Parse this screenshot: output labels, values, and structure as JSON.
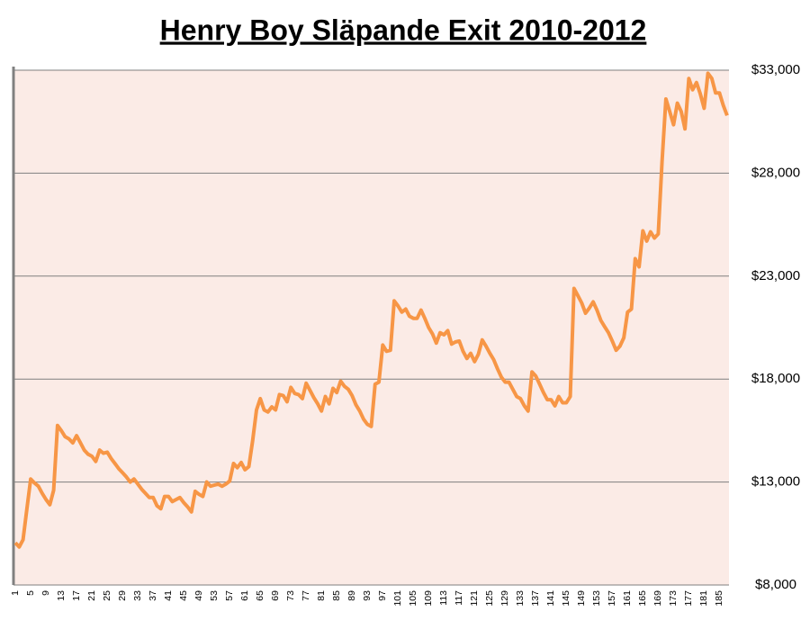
{
  "chart_data": {
    "type": "line",
    "title": "Henry Boy Släpande Exit 2010-2012",
    "categories": [
      "1",
      null,
      null,
      null,
      "5",
      null,
      null,
      null,
      "9",
      null,
      null,
      null,
      "13",
      null,
      null,
      null,
      "17",
      null,
      null,
      null,
      "21",
      null,
      null,
      null,
      "25",
      null,
      null,
      null,
      "29",
      null,
      null,
      null,
      "33",
      null,
      null,
      null,
      "37",
      null,
      null,
      null,
      "41",
      null,
      null,
      null,
      "45",
      null,
      null,
      null,
      "49",
      null,
      null,
      null,
      "53",
      null,
      null,
      null,
      "57",
      null,
      null,
      null,
      "61",
      null,
      null,
      null,
      "65",
      null,
      null,
      null,
      "69",
      null,
      null,
      null,
      "73",
      null,
      null,
      null,
      "77",
      null,
      null,
      null,
      "81",
      null,
      null,
      null,
      "85",
      null,
      null,
      null,
      "89",
      null,
      null,
      null,
      "93",
      null,
      null,
      null,
      "97",
      null,
      null,
      null,
      "101",
      null,
      null,
      null,
      "105",
      null,
      null,
      null,
      "109",
      null,
      null,
      null,
      "113",
      null,
      null,
      null,
      "117",
      null,
      null,
      null,
      "121",
      null,
      null,
      null,
      "125",
      null,
      null,
      null,
      "129",
      null,
      null,
      null,
      "133",
      null,
      null,
      null,
      "137",
      null,
      null,
      null,
      "141",
      null,
      null,
      null,
      "145",
      null,
      null,
      null,
      "149",
      null,
      null,
      null,
      "153",
      null,
      null,
      null,
      "157",
      null,
      null,
      null,
      "161",
      null,
      null,
      null,
      "165",
      null,
      null,
      null,
      "169",
      null,
      null,
      null,
      "173",
      null,
      null,
      null,
      "177",
      null,
      null,
      null,
      "181",
      null,
      null,
      null,
      "185",
      null,
      null
    ],
    "values": [
      10050,
      9850,
      10200,
      11700,
      13150,
      12950,
      12800,
      12450,
      12150,
      11900,
      12600,
      15750,
      15500,
      15200,
      15100,
      14900,
      15250,
      14900,
      14550,
      14350,
      14250,
      14000,
      14550,
      14400,
      14450,
      14150,
      13900,
      13650,
      13450,
      13250,
      13000,
      13150,
      12900,
      12650,
      12450,
      12250,
      12250,
      11850,
      11700,
      12300,
      12300,
      12050,
      12150,
      12250,
      12000,
      11800,
      11550,
      12550,
      12400,
      12300,
      13000,
      12800,
      12850,
      12900,
      12800,
      12900,
      13050,
      13900,
      13700,
      13950,
      13600,
      13750,
      15000,
      16500,
      17050,
      16500,
      16400,
      16650,
      16500,
      17250,
      17200,
      16900,
      17600,
      17300,
      17250,
      17050,
      17800,
      17450,
      17100,
      16800,
      16450,
      17150,
      16800,
      17550,
      17350,
      17900,
      17650,
      17500,
      17200,
      16750,
      16450,
      16050,
      15800,
      15700,
      17750,
      17850,
      19650,
      19350,
      19400,
      21800,
      21550,
      21250,
      21400,
      21050,
      20950,
      20950,
      21350,
      20950,
      20500,
      20200,
      19750,
      20250,
      20150,
      20350,
      19700,
      19800,
      19850,
      19350,
      19000,
      19250,
      18850,
      19200,
      19900,
      19600,
      19250,
      18950,
      18500,
      18100,
      17850,
      17850,
      17500,
      17150,
      17050,
      16700,
      16450,
      18350,
      18150,
      17750,
      17350,
      17000,
      17000,
      16700,
      17150,
      16850,
      16850,
      17150,
      22400,
      22050,
      21700,
      21200,
      21450,
      21750,
      21350,
      20850,
      20550,
      20250,
      19850,
      19400,
      19600,
      20000,
      21250,
      21400,
      23850,
      23450,
      25200,
      24700,
      25150,
      24850,
      25050,
      28550,
      31600,
      31000,
      30350,
      31400,
      31000,
      30150,
      32600,
      32050,
      32400,
      31850,
      31150,
      32850,
      32600,
      31900,
      31900,
      31300,
      30800
    ],
    "color": "#f79646",
    "ylim": [
      8000,
      33000
    ],
    "yticks": [
      {
        "value": 8000,
        "label": "$8,000"
      },
      {
        "value": 13000,
        "label": "$13,000"
      },
      {
        "value": 18000,
        "label": "$18,000"
      },
      {
        "value": 23000,
        "label": "$23,000"
      },
      {
        "value": 28000,
        "label": "$28,000"
      },
      {
        "value": 33000,
        "label": "$33,000"
      }
    ],
    "grid": true
  }
}
